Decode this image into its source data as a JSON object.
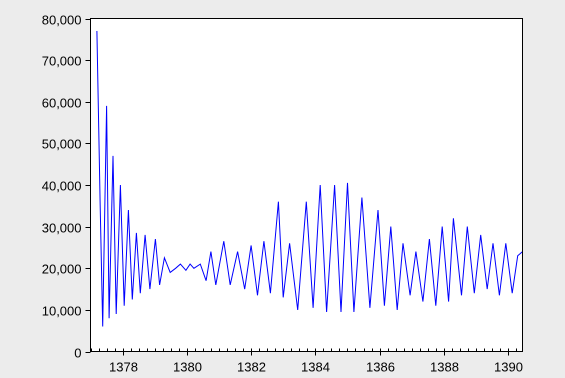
{
  "chart_data": {
    "type": "line",
    "title": "",
    "xlabel": "",
    "ylabel": "",
    "xlim": [
      1377.0,
      1390.45
    ],
    "ylim": [
      0,
      80000
    ],
    "y_ticks": [
      0,
      10000,
      20000,
      30000,
      40000,
      50000,
      60000,
      70000,
      80000
    ],
    "y_tick_labels": [
      "0",
      "10,000",
      "20,000",
      "30,000",
      "40,000",
      "50,000",
      "60,000",
      "70,000",
      "80,000"
    ],
    "x_ticks": [
      1378,
      1380,
      1382,
      1384,
      1386,
      1388,
      1390
    ],
    "x_tick_labels": [
      "1378",
      "1380",
      "1382",
      "1384",
      "1386",
      "1388",
      "1390"
    ],
    "grid": false,
    "legend": "none",
    "series": [
      {
        "color": "#0000ff",
        "x": [
          1377.2,
          1377.3,
          1377.38,
          1377.5,
          1377.58,
          1377.7,
          1377.8,
          1377.93,
          1378.05,
          1378.18,
          1378.3,
          1378.43,
          1378.55,
          1378.7,
          1378.85,
          1379.02,
          1379.15,
          1379.3,
          1379.48,
          1379.65,
          1379.8,
          1379.97,
          1380.1,
          1380.22,
          1380.42,
          1380.6,
          1380.75,
          1380.9,
          1381.15,
          1381.35,
          1381.58,
          1381.8,
          1382.0,
          1382.2,
          1382.4,
          1382.6,
          1382.85,
          1383.0,
          1383.2,
          1383.45,
          1383.72,
          1383.93,
          1384.15,
          1384.35,
          1384.6,
          1384.8,
          1385.0,
          1385.2,
          1385.45,
          1385.7,
          1385.95,
          1386.15,
          1386.35,
          1386.55,
          1386.73,
          1386.95,
          1387.13,
          1387.35,
          1387.55,
          1387.75,
          1387.95,
          1388.15,
          1388.3,
          1388.55,
          1388.73,
          1388.95,
          1389.15,
          1389.35,
          1389.53,
          1389.73,
          1389.93,
          1390.13,
          1390.3,
          1390.45
        ],
        "values": [
          77000,
          36000,
          6000,
          59000,
          8000,
          47000,
          9000,
          40000,
          11000,
          34000,
          12500,
          28500,
          14000,
          28000,
          15000,
          27000,
          16000,
          22500,
          19000,
          20000,
          21000,
          19500,
          21000,
          20000,
          21000,
          17000,
          24000,
          16000,
          26500,
          16000,
          24000,
          15000,
          25500,
          13500,
          26500,
          14000,
          36000,
          13000,
          26000,
          10000,
          36000,
          10500,
          40000,
          9500,
          40000,
          9500,
          40500,
          9500,
          37000,
          10500,
          34000,
          11000,
          30000,
          10000,
          26000,
          13500,
          24000,
          12000,
          27000,
          11000,
          30000,
          12000,
          32000,
          13500,
          30000,
          14000,
          28000,
          15000,
          26000,
          13500,
          26000,
          14000,
          23000,
          24000
        ]
      }
    ]
  }
}
